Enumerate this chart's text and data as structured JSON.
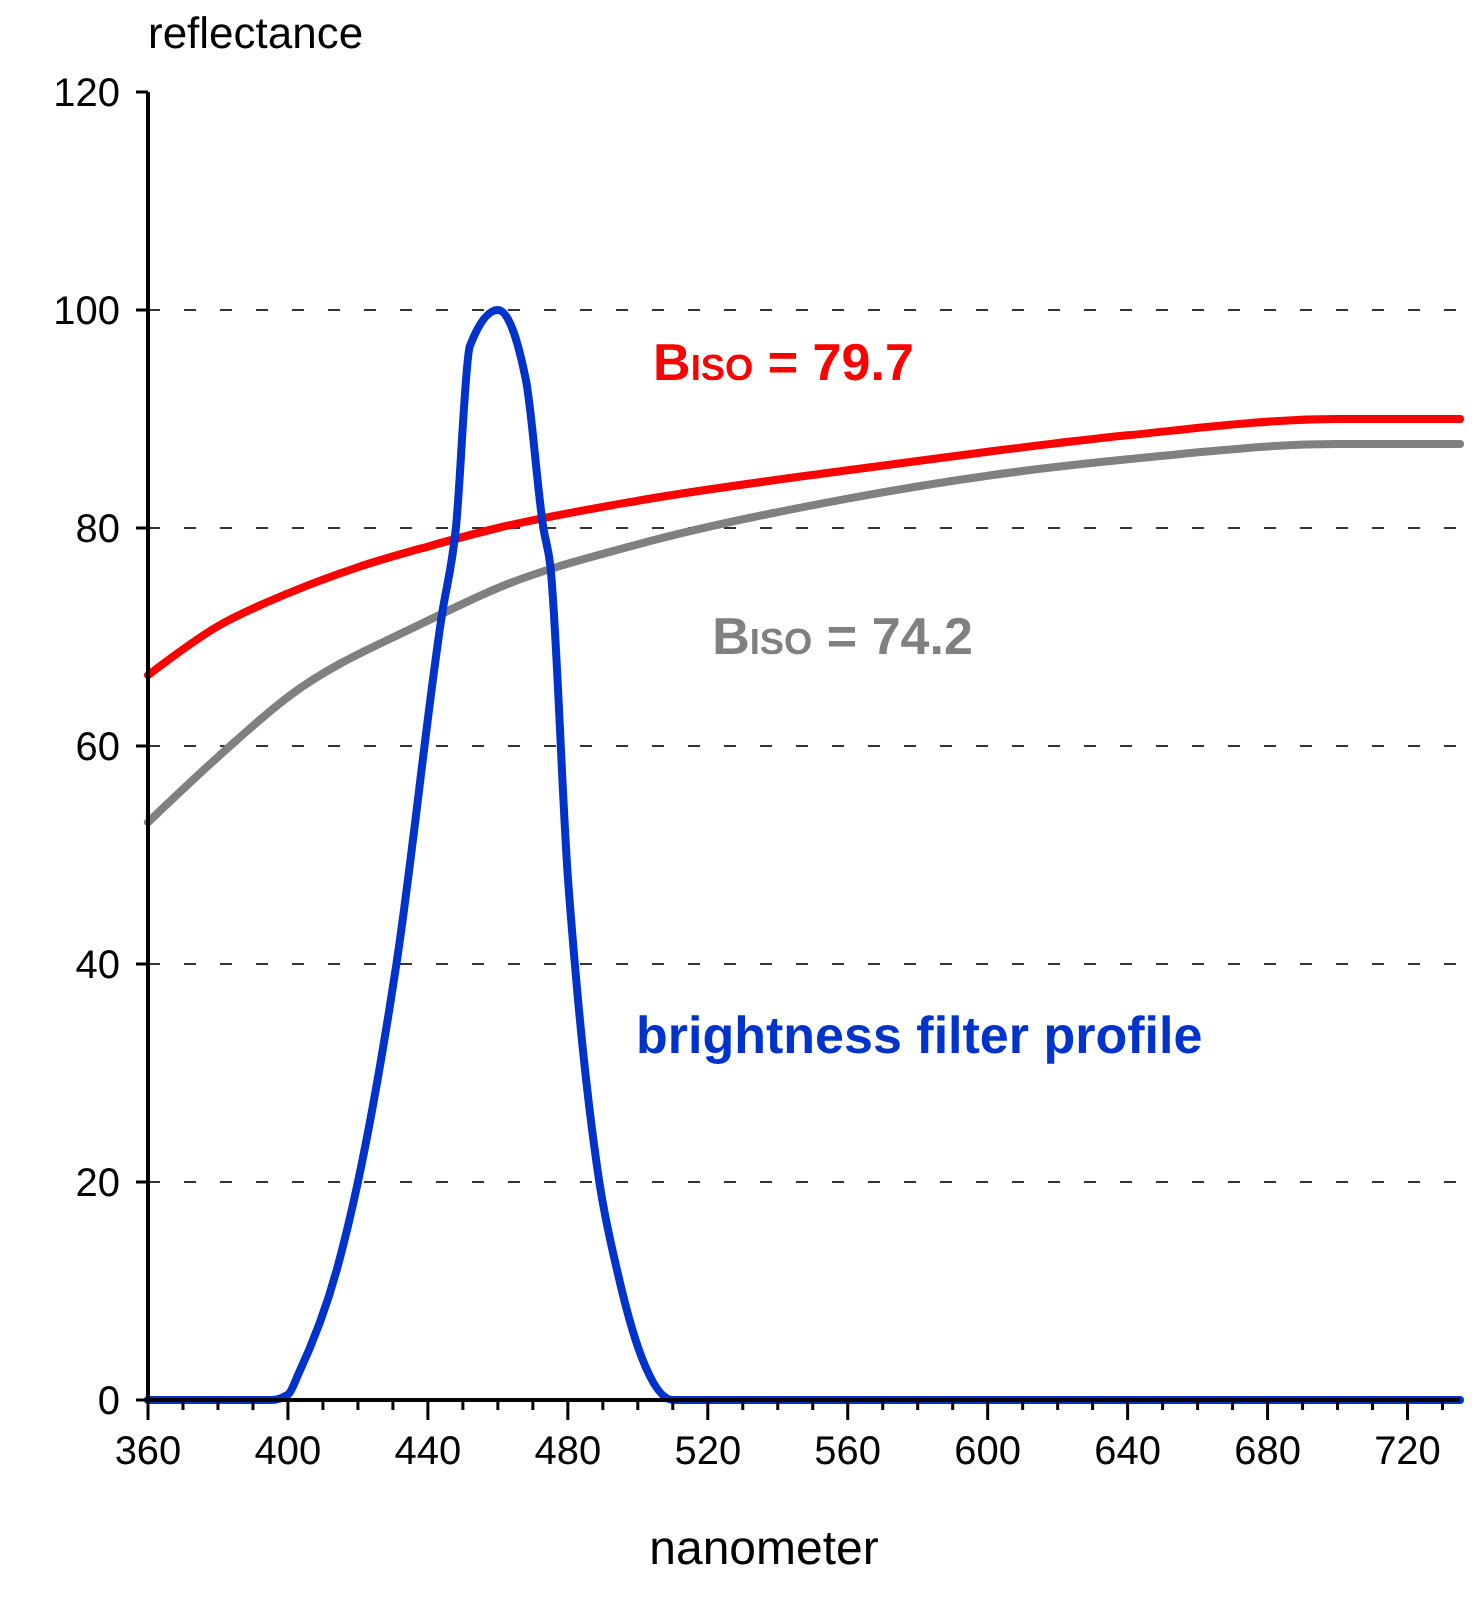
{
  "chart_data": {
    "type": "line",
    "xlabel": "nanometer",
    "ylabel": "reflectance",
    "xlim": [
      360,
      735
    ],
    "ylim": [
      0,
      120
    ],
    "xticks": [
      360,
      {
        "value": 370,
        "label": null
      },
      {
        "value": 380,
        "label": null
      },
      {
        "value": 390,
        "label": null
      },
      400,
      {
        "value": 410,
        "label": null
      },
      {
        "value": 420,
        "label": null
      },
      {
        "value": 430,
        "label": null
      },
      440,
      {
        "value": 450,
        "label": null
      },
      {
        "value": 460,
        "label": null
      },
      {
        "value": 470,
        "label": null
      },
      480,
      {
        "value": 490,
        "label": null
      },
      {
        "value": 500,
        "label": null
      },
      {
        "value": 510,
        "label": null
      },
      520,
      {
        "value": 530,
        "label": null
      },
      {
        "value": 540,
        "label": null
      },
      {
        "value": 550,
        "label": null
      },
      560,
      {
        "value": 570,
        "label": null
      },
      {
        "value": 580,
        "label": null
      },
      {
        "value": 590,
        "label": null
      },
      600,
      {
        "value": 610,
        "label": null
      },
      {
        "value": 620,
        "label": null
      },
      {
        "value": 630,
        "label": null
      },
      640,
      {
        "value": 650,
        "label": null
      },
      {
        "value": 660,
        "label": null
      },
      {
        "value": 670,
        "label": null
      },
      680,
      {
        "value": 690,
        "label": null
      },
      {
        "value": 700,
        "label": null
      },
      {
        "value": 710,
        "label": null
      },
      720,
      {
        "value": 730,
        "label": null
      }
    ],
    "yticks": [
      0,
      20,
      40,
      60,
      80,
      100,
      120
    ],
    "grid": "y",
    "line_style": "solid",
    "marker": "none",
    "series": [
      {
        "name": "B$_{ISO}$ = 79.7",
        "color": "#ff0000",
        "x": [
          360,
          380,
          400,
          420,
          440,
          460,
          500,
          560,
          600,
          640,
          700,
          735
        ],
        "values": [
          66.5,
          71,
          74,
          76.4,
          78.3,
          80,
          82.5,
          85.3,
          87,
          88.5,
          90,
          90
        ]
      },
      {
        "name": "B$_{ISO}$ = 74.2",
        "color": "#808080",
        "x": [
          360,
          380,
          400,
          440,
          460,
          500,
          560,
          600,
          640,
          700,
          735
        ],
        "values": [
          53,
          59,
          64.5,
          71.5,
          74.5,
          78.5,
          82.7,
          84.8,
          86.3,
          87.7,
          87.7
        ]
      },
      {
        "name": "brightness filter profile",
        "color": "#0033cc",
        "x": [
          360,
          395,
          400,
          403,
          414,
          420,
          431,
          444,
          448,
          452,
          460,
          468,
          473,
          475,
          480,
          482,
          489,
          494,
          501,
          510,
          735
        ],
        "values": [
          0,
          0,
          0.5,
          2.4,
          12,
          20,
          40,
          72,
          80,
          96.7,
          100,
          93.6,
          80,
          76.5,
          48,
          40,
          20,
          12,
          4,
          0,
          0
        ]
      }
    ]
  }
}
